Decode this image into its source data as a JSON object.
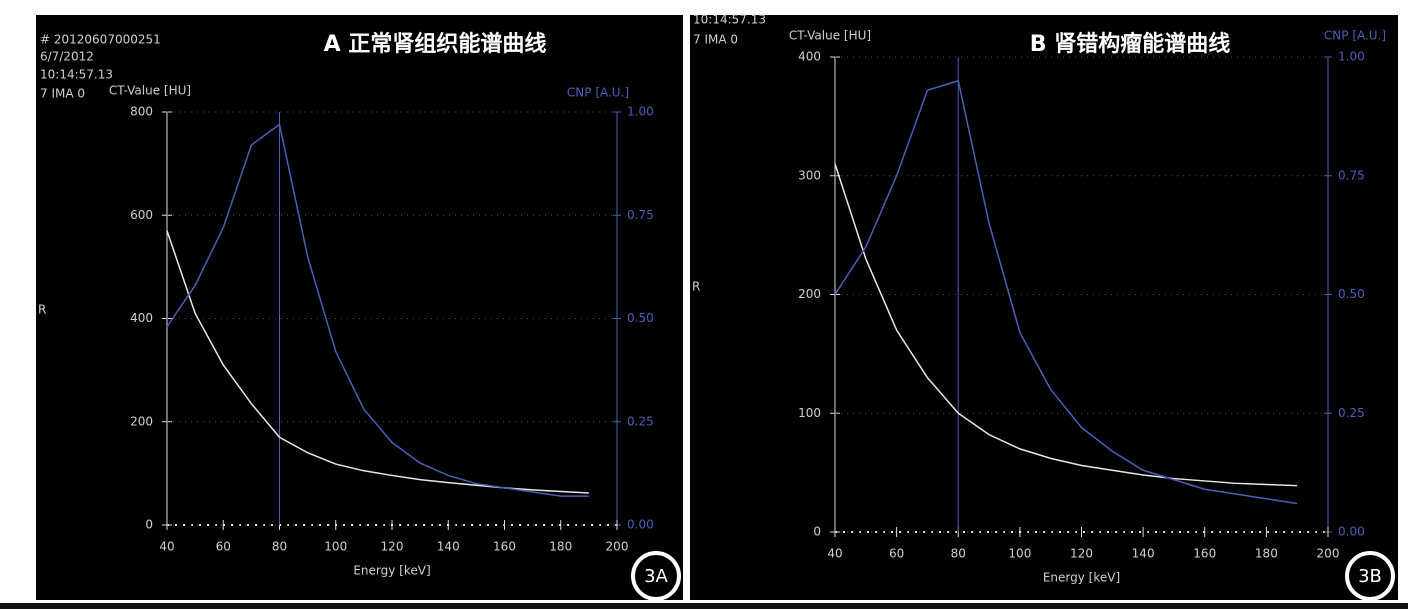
{
  "chart_data": [
    {
      "type": "line",
      "title": "A 正常肾组织能谱曲线",
      "x_label": "Energy [keV]",
      "y_label": "CT-Value [HU]",
      "y2_label": "CNP [A.U.]",
      "header_lines": [
        "# 20120607000251",
        "6/7/2012",
        "10:14:57.13",
        "7 IMA 0"
      ],
      "side_label": "R",
      "badge": "3A",
      "x": [
        40,
        50,
        60,
        70,
        80,
        90,
        100,
        110,
        120,
        130,
        140,
        150,
        160,
        170,
        180,
        190
      ],
      "series": [
        {
          "name": "CT-Value",
          "color": "#e8e8e8",
          "values": [
            570,
            410,
            310,
            235,
            170,
            140,
            118,
            105,
            96,
            88,
            82,
            77,
            72,
            68,
            65,
            62
          ]
        },
        {
          "name": "CNP",
          "color": "#4a5fb8",
          "axis": "y2",
          "values": [
            0.48,
            0.58,
            0.72,
            0.92,
            0.97,
            0.65,
            0.42,
            0.28,
            0.2,
            0.15,
            0.12,
            0.1,
            0.09,
            0.08,
            0.07,
            0.07
          ]
        }
      ],
      "cursor_x": 80,
      "xlim": [
        40,
        200
      ],
      "xticks": [
        40,
        60,
        80,
        100,
        120,
        140,
        160,
        180,
        200
      ],
      "ylim": [
        0,
        800
      ],
      "yticks": [
        0,
        200,
        400,
        600,
        800
      ],
      "y2lim": [
        0,
        1
      ],
      "y2ticks": [
        {
          "value": 0,
          "label": "0.00"
        },
        {
          "value": 0.25,
          "label": "0.25"
        },
        {
          "value": 0.5,
          "label": "0.50"
        },
        {
          "value": 0.75,
          "label": "0.75"
        },
        {
          "value": 1,
          "label": "1.00"
        }
      ],
      "grid": true
    },
    {
      "type": "line",
      "title": "B 肾错构瘤能谱曲线",
      "x_label": "Energy [keV]",
      "y_label": "CT-Value [HU]",
      "y2_label": "CNP [A.U.]",
      "header_lines": [
        "10:14:57.13",
        "7 IMA 0"
      ],
      "side_label": "R",
      "badge": "3B",
      "x": [
        40,
        50,
        60,
        70,
        80,
        90,
        100,
        110,
        120,
        130,
        140,
        150,
        160,
        170,
        180,
        190
      ],
      "series": [
        {
          "name": "CT-Value",
          "color": "#e8e8e8",
          "values": [
            310,
            230,
            170,
            130,
            100,
            82,
            70,
            62,
            56,
            52,
            48,
            45,
            43,
            41,
            40,
            39
          ]
        },
        {
          "name": "CNP",
          "color": "#4a5fb8",
          "axis": "y2",
          "values": [
            0.5,
            0.6,
            0.75,
            0.93,
            0.95,
            0.65,
            0.42,
            0.3,
            0.22,
            0.17,
            0.13,
            0.11,
            0.09,
            0.08,
            0.07,
            0.06
          ]
        }
      ],
      "cursor_x": 80,
      "xlim": [
        40,
        200
      ],
      "xticks": [
        40,
        60,
        80,
        100,
        120,
        140,
        160,
        180,
        200
      ],
      "ylim": [
        0,
        400
      ],
      "yticks": [
        0,
        100,
        200,
        300,
        400
      ],
      "y2lim": [
        0,
        1
      ],
      "y2ticks": [
        {
          "value": 0,
          "label": "0.00"
        },
        {
          "value": 0.25,
          "label": "0.25"
        },
        {
          "value": 0.5,
          "label": "0.50"
        },
        {
          "value": 0.75,
          "label": "0.75"
        },
        {
          "value": 1,
          "label": "1.00"
        }
      ],
      "grid": true
    }
  ]
}
